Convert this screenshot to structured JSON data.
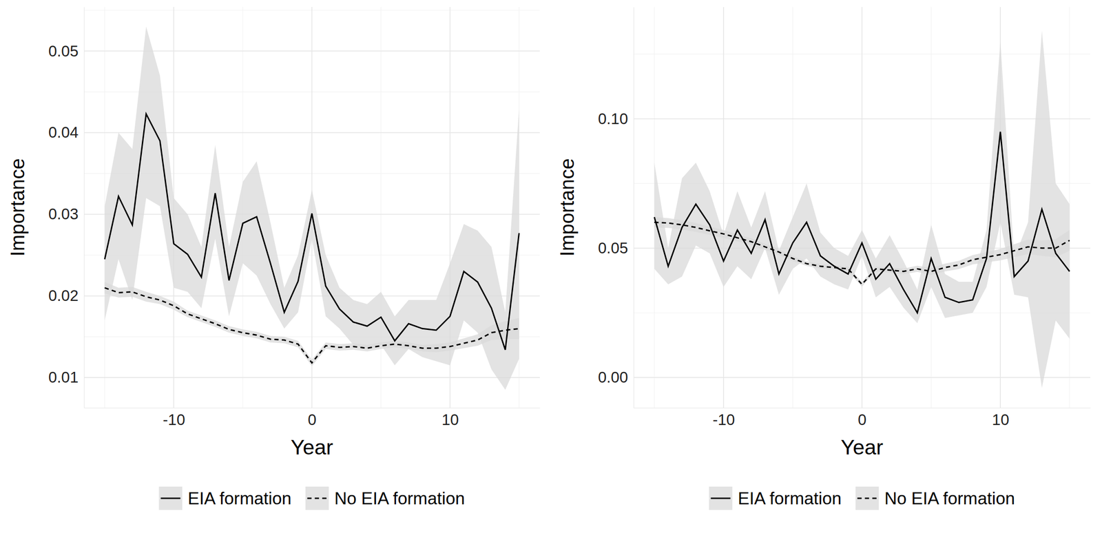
{
  "chart_data": [
    {
      "type": "line",
      "xlabel": "Year",
      "ylabel": "Importance",
      "grid": true,
      "legend": "bottom",
      "xlim": [
        -16.5,
        16.5
      ],
      "ylim": [
        0.0063,
        0.0554
      ],
      "xticks": [
        -10,
        0,
        10
      ],
      "yticks": [
        0.01,
        0.02,
        0.03,
        0.04,
        0.05
      ],
      "x": [
        -15,
        -14,
        -13,
        -12,
        -11,
        -10,
        -9,
        -8,
        -7,
        -6,
        -5,
        -4,
        -3,
        -2,
        -1,
        0,
        1,
        2,
        3,
        4,
        5,
        6,
        7,
        8,
        9,
        10,
        11,
        12,
        13,
        14,
        15
      ],
      "series": [
        {
          "name": "EIA formation",
          "color": "#000000",
          "line_style": "solid",
          "values": [
            0.0245,
            0.0322,
            0.0287,
            0.0423,
            0.039,
            0.0264,
            0.0251,
            0.0223,
            0.0326,
            0.0219,
            0.0289,
            0.0297,
            0.024,
            0.018,
            0.0218,
            0.0301,
            0.0212,
            0.0184,
            0.0168,
            0.0163,
            0.0174,
            0.0145,
            0.0166,
            0.016,
            0.0158,
            0.0175,
            0.023,
            0.0217,
            0.0185,
            0.0134,
            0.0277
          ],
          "lower": [
            0.017,
            0.0245,
            0.0195,
            0.032,
            0.031,
            0.021,
            0.0205,
            0.0185,
            0.027,
            0.0175,
            0.024,
            0.0225,
            0.019,
            0.016,
            0.018,
            0.027,
            0.0175,
            0.016,
            0.014,
            0.0135,
            0.014,
            0.0115,
            0.0135,
            0.0125,
            0.012,
            0.0115,
            0.017,
            0.0155,
            0.011,
            0.0085,
            0.0123
          ],
          "upper": [
            0.031,
            0.04,
            0.038,
            0.053,
            0.047,
            0.032,
            0.03,
            0.026,
            0.0385,
            0.026,
            0.034,
            0.0365,
            0.029,
            0.021,
            0.025,
            0.033,
            0.025,
            0.021,
            0.0195,
            0.019,
            0.0205,
            0.0175,
            0.0195,
            0.0195,
            0.0195,
            0.024,
            0.0288,
            0.028,
            0.026,
            0.018,
            0.043
          ]
        },
        {
          "name": "No EIA formation",
          "color": "#000000",
          "line_style": "dashed",
          "values": [
            0.021,
            0.0204,
            0.0205,
            0.0199,
            0.0195,
            0.0188,
            0.0178,
            0.0172,
            0.0166,
            0.0159,
            0.0155,
            0.0152,
            0.0147,
            0.0146,
            0.0141,
            0.0118,
            0.0139,
            0.0137,
            0.0138,
            0.0136,
            0.0139,
            0.0141,
            0.0139,
            0.0136,
            0.0136,
            0.0138,
            0.0142,
            0.0146,
            0.0155,
            0.0158,
            0.016
          ],
          "lower": [
            0.0203,
            0.0198,
            0.0199,
            0.0193,
            0.019,
            0.0183,
            0.0174,
            0.0168,
            0.0162,
            0.0155,
            0.0151,
            0.0148,
            0.0143,
            0.0142,
            0.0137,
            0.0114,
            0.0135,
            0.0133,
            0.0134,
            0.0132,
            0.0135,
            0.0137,
            0.0135,
            0.0132,
            0.0131,
            0.0133,
            0.0136,
            0.0139,
            0.0146,
            0.0147,
            0.0147
          ],
          "upper": [
            0.0217,
            0.021,
            0.0211,
            0.0205,
            0.02,
            0.0193,
            0.0182,
            0.0176,
            0.017,
            0.0163,
            0.0159,
            0.0156,
            0.0151,
            0.015,
            0.0145,
            0.0122,
            0.0143,
            0.0141,
            0.0142,
            0.014,
            0.0143,
            0.0145,
            0.0143,
            0.014,
            0.0141,
            0.0143,
            0.0148,
            0.0153,
            0.0164,
            0.0169,
            0.0173
          ]
        }
      ]
    },
    {
      "type": "line",
      "xlabel": "Year",
      "ylabel": "Importance",
      "grid": true,
      "legend": "bottom",
      "xlim": [
        -16.5,
        16.5
      ],
      "ylim": [
        -0.0117,
        0.1432
      ],
      "xticks": [
        -10,
        0,
        10
      ],
      "yticks": [
        {
          "value": 0,
          "label": "0.00"
        },
        0.05,
        {
          "value": 0.1,
          "label": "0.10"
        }
      ],
      "x": [
        -15,
        -14,
        -13,
        -12,
        -11,
        -10,
        -9,
        -8,
        -7,
        -6,
        -5,
        -4,
        -3,
        -2,
        -1,
        0,
        1,
        2,
        3,
        4,
        5,
        6,
        7,
        8,
        9,
        10,
        11,
        12,
        13,
        14,
        15
      ],
      "series": [
        {
          "name": "EIA formation",
          "color": "#000000",
          "line_style": "solid",
          "values": [
            0.062,
            0.043,
            0.058,
            0.067,
            0.059,
            0.045,
            0.057,
            0.048,
            0.061,
            0.04,
            0.052,
            0.06,
            0.047,
            0.043,
            0.04,
            0.052,
            0.038,
            0.044,
            0.034,
            0.025,
            0.046,
            0.031,
            0.029,
            0.03,
            0.046,
            0.095,
            0.039,
            0.045,
            0.065,
            0.048,
            0.041
          ],
          "lower": [
            0.042,
            0.036,
            0.039,
            0.051,
            0.048,
            0.035,
            0.043,
            0.038,
            0.05,
            0.032,
            0.042,
            0.046,
            0.039,
            0.036,
            0.034,
            0.047,
            0.031,
            0.035,
            0.027,
            0.021,
            0.035,
            0.023,
            0.024,
            0.025,
            0.035,
            0.06,
            0.032,
            0.031,
            -0.004,
            0.022,
            0.015
          ],
          "upper": [
            0.083,
            0.05,
            0.077,
            0.083,
            0.072,
            0.055,
            0.072,
            0.058,
            0.072,
            0.049,
            0.062,
            0.075,
            0.056,
            0.05,
            0.047,
            0.057,
            0.046,
            0.055,
            0.045,
            0.034,
            0.059,
            0.04,
            0.037,
            0.037,
            0.057,
            0.13,
            0.046,
            0.06,
            0.134,
            0.075,
            0.067
          ]
        },
        {
          "name": "No EIA formation",
          "color": "#000000",
          "line_style": "dashed",
          "values": [
            0.06,
            0.0597,
            0.059,
            0.058,
            0.0567,
            0.0555,
            0.054,
            0.0525,
            0.0505,
            0.0485,
            0.046,
            0.044,
            0.043,
            0.0425,
            0.042,
            0.036,
            0.042,
            0.0415,
            0.041,
            0.042,
            0.041,
            0.0425,
            0.0435,
            0.0455,
            0.0465,
            0.0475,
            0.049,
            0.0505,
            0.05,
            0.05,
            0.053
          ],
          "lower": [
            0.058,
            0.0578,
            0.0572,
            0.0563,
            0.0551,
            0.054,
            0.0526,
            0.0512,
            0.0493,
            0.0474,
            0.045,
            0.0431,
            0.0421,
            0.0416,
            0.0411,
            0.0351,
            0.0411,
            0.0405,
            0.0399,
            0.0408,
            0.0397,
            0.041,
            0.0419,
            0.0437,
            0.0445,
            0.0453,
            0.0465,
            0.0477,
            0.047,
            0.0465,
            0.049
          ],
          "upper": [
            0.062,
            0.0616,
            0.0608,
            0.0597,
            0.0583,
            0.057,
            0.0554,
            0.0538,
            0.0517,
            0.0496,
            0.047,
            0.0449,
            0.0439,
            0.0434,
            0.0429,
            0.0369,
            0.0429,
            0.0425,
            0.0421,
            0.0432,
            0.0423,
            0.044,
            0.0451,
            0.0473,
            0.0485,
            0.0497,
            0.0515,
            0.0533,
            0.053,
            0.0535,
            0.057
          ]
        }
      ]
    }
  ]
}
